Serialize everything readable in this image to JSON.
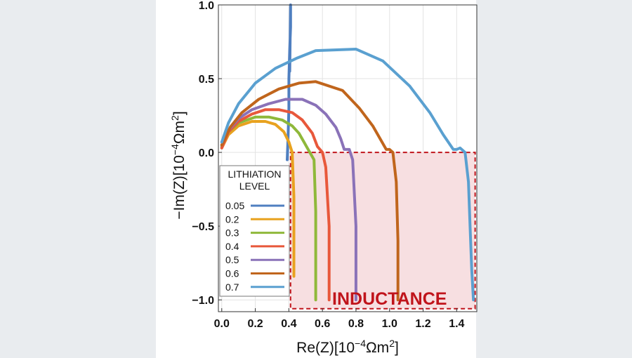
{
  "chart_data": {
    "type": "line",
    "xlabel_base": "Re(Z)[10",
    "xlabel_exp": "−4",
    "xlabel_unit": "Ωm",
    "xlabel_sup": "2",
    "xlabel_tail": "]",
    "ylabel_base": "−Im(Z)[10",
    "ylabel_exp": "−4",
    "ylabel_unit": "Ωm",
    "ylabel_sup": "2",
    "ylabel_tail": "]",
    "xlim": [
      -0.02,
      1.52
    ],
    "ylim": [
      -1.08,
      1.0
    ],
    "x_ticks": [
      0.0,
      0.2,
      0.4,
      0.6,
      0.8,
      1.0,
      1.2,
      1.4
    ],
    "x_tick_labels": [
      "0.0",
      "0.2",
      "0.4",
      "0.6",
      "0.8",
      "1.0",
      "1.2",
      "1.4"
    ],
    "y_ticks": [
      1.0,
      0.5,
      0.0,
      -0.5,
      -1.0
    ],
    "y_tick_labels": [
      "1.0",
      "0.5",
      "0.0",
      "−0.5",
      "−1.0"
    ],
    "legend": {
      "title_line1": "LITHIATION",
      "title_line2": "LEVEL",
      "placement": "left"
    },
    "annotation": {
      "text": "INDUCTANCE",
      "region_x": [
        0.41,
        1.51
      ],
      "region_y": [
        -1.06,
        0.0
      ],
      "color": "#c0141b",
      "fill": "#f7dfe1"
    },
    "series": [
      {
        "name": "0.05",
        "color": "#4f7fc0",
        "x": [
          0.39,
          0.395,
          0.4,
          0.4,
          0.405,
          0.41,
          0.41,
          0.405
        ],
        "y": [
          -0.05,
          0.1,
          0.3,
          0.5,
          0.7,
          0.85,
          1.0,
          0.55
        ]
      },
      {
        "name": "0.2",
        "color": "#e8a21f",
        "x": [
          0.0,
          0.04,
          0.1,
          0.18,
          0.26,
          0.32,
          0.37,
          0.4,
          0.42,
          0.43,
          0.43
        ],
        "y": [
          0.03,
          0.12,
          0.18,
          0.21,
          0.21,
          0.19,
          0.14,
          0.07,
          0.0,
          -0.3,
          -0.84
        ]
      },
      {
        "name": "0.3",
        "color": "#8fb83a",
        "x": [
          0.0,
          0.04,
          0.1,
          0.2,
          0.28,
          0.36,
          0.42,
          0.46,
          0.49,
          0.52,
          0.55,
          0.56,
          0.56
        ],
        "y": [
          0.04,
          0.14,
          0.2,
          0.24,
          0.24,
          0.22,
          0.18,
          0.13,
          0.07,
          0.01,
          -0.05,
          -0.4,
          -1.0
        ]
      },
      {
        "name": "0.4",
        "color": "#e8583b",
        "x": [
          0.0,
          0.04,
          0.1,
          0.18,
          0.26,
          0.34,
          0.42,
          0.48,
          0.54,
          0.57,
          0.6,
          0.62,
          0.64,
          0.64
        ],
        "y": [
          0.03,
          0.14,
          0.21,
          0.26,
          0.29,
          0.29,
          0.27,
          0.22,
          0.13,
          0.04,
          0.0,
          -0.1,
          -0.5,
          -1.0
        ]
      },
      {
        "name": "0.5",
        "color": "#8a72b8",
        "x": [
          0.0,
          0.04,
          0.1,
          0.18,
          0.28,
          0.38,
          0.48,
          0.56,
          0.62,
          0.68,
          0.71,
          0.73,
          0.76,
          0.78,
          0.8,
          0.8
        ],
        "y": [
          0.05,
          0.15,
          0.23,
          0.29,
          0.33,
          0.36,
          0.36,
          0.32,
          0.26,
          0.17,
          0.09,
          0.02,
          0.02,
          -0.05,
          -0.5,
          -1.0
        ]
      },
      {
        "name": "0.6",
        "color": "#c0651c",
        "x": [
          0.0,
          0.05,
          0.12,
          0.22,
          0.34,
          0.46,
          0.56,
          0.72,
          0.82,
          0.9,
          0.95,
          0.98,
          1.0,
          1.02,
          1.04,
          1.05,
          1.05
        ],
        "y": [
          0.05,
          0.17,
          0.27,
          0.36,
          0.43,
          0.47,
          0.48,
          0.42,
          0.3,
          0.18,
          0.08,
          0.02,
          0.02,
          0.0,
          -0.2,
          -0.6,
          -1.0
        ]
      },
      {
        "name": "0.7",
        "color": "#5aa0d0",
        "x": [
          0.0,
          0.04,
          0.1,
          0.2,
          0.32,
          0.45,
          0.56,
          0.8,
          0.96,
          1.12,
          1.24,
          1.32,
          1.38,
          1.4,
          1.42,
          1.45,
          1.47,
          1.48,
          1.49,
          1.5
        ],
        "y": [
          0.07,
          0.2,
          0.33,
          0.47,
          0.57,
          0.64,
          0.69,
          0.7,
          0.62,
          0.45,
          0.27,
          0.12,
          0.02,
          0.02,
          0.03,
          0.0,
          -0.2,
          -0.5,
          -0.8,
          -1.0
        ]
      }
    ]
  }
}
